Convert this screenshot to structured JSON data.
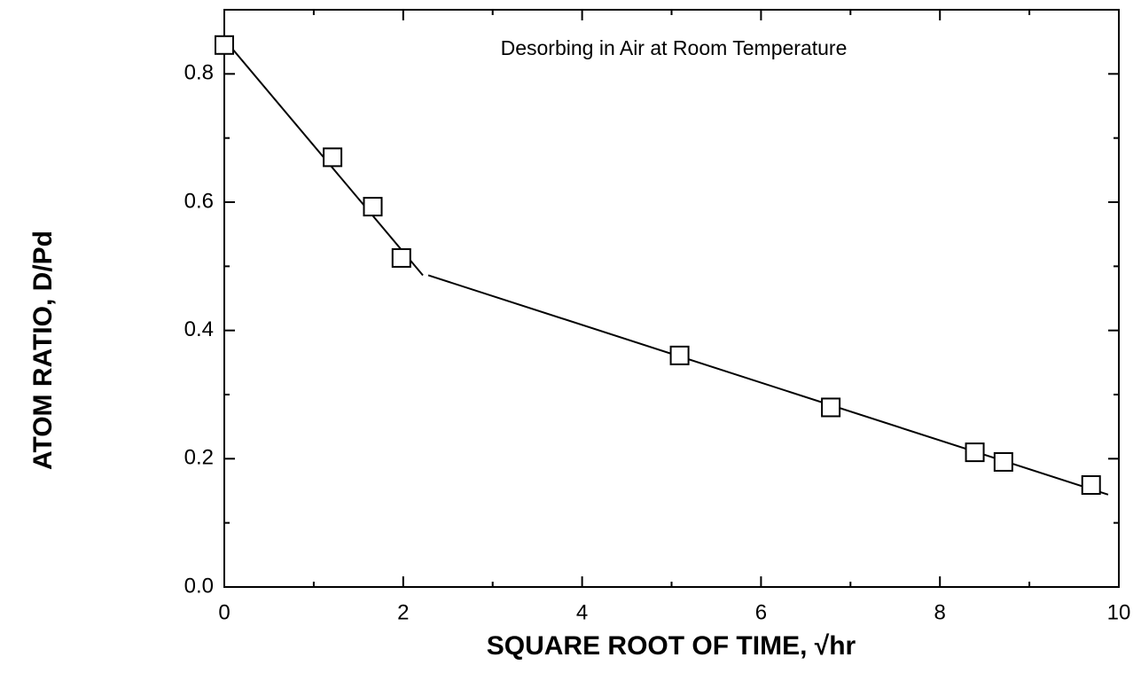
{
  "chart_data": {
    "type": "scatter",
    "annotation": "Desorbing in Air at Room Temperature",
    "xlabel": "SQUARE ROOT OF TIME, √hr",
    "ylabel": "ATOM RATIO, D/Pd",
    "x": [
      0,
      1.21,
      1.66,
      1.98,
      5.09,
      6.78,
      8.39,
      8.71,
      9.69
    ],
    "values": [
      0.845,
      0.67,
      0.593,
      0.513,
      0.361,
      0.28,
      0.21,
      0.195,
      0.159
    ],
    "color": "#000000",
    "lines": [
      {
        "x": [
          0,
          2.22
        ],
        "values": [
          0.854,
          0.486
        ]
      },
      {
        "x": [
          2.28,
          9.88
        ],
        "values": [
          0.486,
          0.144
        ]
      }
    ],
    "xlim": [
      0,
      10
    ],
    "ylim": [
      0,
      0.9
    ],
    "xticks": [
      0,
      2,
      4,
      6,
      8,
      10
    ],
    "yticks": [
      {
        "value": 0,
        "label": "0.0"
      },
      0.2,
      0.4,
      0.6,
      0.8
    ]
  }
}
